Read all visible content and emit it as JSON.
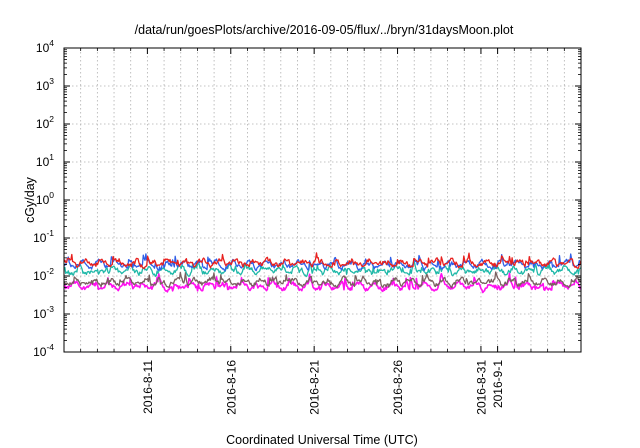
{
  "chart_data": {
    "type": "line",
    "title": "/data/run/goesPlots/archive/2016-09-05/flux/../bryn/31daysMoon.plot",
    "xlabel": "Coordinated Universal Time (UTC)",
    "ylabel": "cGy/day",
    "yscale": "log",
    "ylim": [
      0.0001,
      10000
    ],
    "xlim": [
      "2016-08-06",
      "2016-09-06"
    ],
    "grid": true,
    "y_ticks": [
      {
        "base": "10",
        "exp": "-4"
      },
      {
        "base": "10",
        "exp": "-3"
      },
      {
        "base": "10",
        "exp": "-2"
      },
      {
        "base": "10",
        "exp": "-1"
      },
      {
        "base": "10",
        "exp": "0"
      },
      {
        "base": "10",
        "exp": "1"
      },
      {
        "base": "10",
        "exp": "2"
      },
      {
        "base": "10",
        "exp": "3"
      },
      {
        "base": "10",
        "exp": "4"
      }
    ],
    "x_ticks": [
      "2016-8-11",
      "2016-8-16",
      "2016-8-21",
      "2016-8-26",
      "2016-8-31",
      "2016-9-1"
    ],
    "x_tick_dates": [
      "2016-08-11",
      "2016-08-16",
      "2016-08-21",
      "2016-08-26",
      "2016-08-31",
      "2016-09-01"
    ],
    "x_minor_tick_dates": [
      "2016-08-07",
      "2016-08-08",
      "2016-08-09",
      "2016-08-10",
      "2016-08-12",
      "2016-08-13",
      "2016-08-14",
      "2016-08-15",
      "2016-08-17",
      "2016-08-18",
      "2016-08-19",
      "2016-08-20",
      "2016-08-22",
      "2016-08-23",
      "2016-08-24",
      "2016-08-25",
      "2016-08-27",
      "2016-08-28",
      "2016-08-29",
      "2016-08-30",
      "2016-09-02",
      "2016-09-03",
      "2016-09-04",
      "2016-09-05"
    ],
    "series": [
      {
        "color": "#e8201e",
        "typical": 0.022,
        "low": 0.015,
        "high": 0.06
      },
      {
        "color": "#2f5fe8",
        "typical": 0.02,
        "low": 0.012,
        "high": 0.07
      },
      {
        "color": "#1fb8a8",
        "typical": 0.014,
        "low": 0.008,
        "high": 0.03
      },
      {
        "color": "#7a6060",
        "typical": 0.007,
        "low": 0.004,
        "high": 0.02
      },
      {
        "color": "#ff10f0",
        "typical": 0.0055,
        "low": 0.003,
        "high": 0.02
      }
    ]
  }
}
